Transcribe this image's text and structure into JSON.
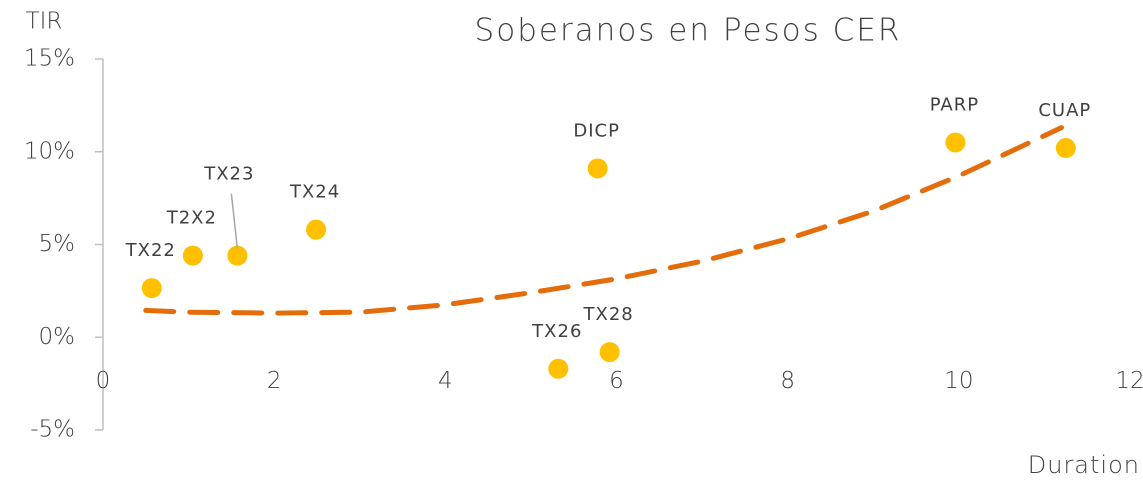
{
  "chart_data": {
    "type": "scatter",
    "title": "Soberanos en Pesos CER",
    "y_label": "TIR",
    "x_label": "Duration",
    "labels": [
      "TX22",
      "T2X2",
      "TX23",
      "TX24",
      "DICP",
      "TX26",
      "TX28",
      "PARP",
      "CUAP"
    ],
    "x": [
      0.57,
      1.05,
      1.57,
      2.49,
      5.78,
      5.32,
      5.92,
      9.96,
      11.25
    ],
    "values": [
      2.65,
      4.4,
      4.4,
      5.8,
      9.1,
      -1.7,
      -0.8,
      10.5,
      10.2
    ],
    "color": "#ffc000",
    "trendline": {
      "x": [
        0.5,
        1,
        2,
        3,
        4,
        5,
        6,
        7,
        8,
        9,
        10,
        11.2
      ],
      "values": [
        1.45,
        1.35,
        1.3,
        1.35,
        1.75,
        2.4,
        3.15,
        4.1,
        5.3,
        6.8,
        8.7,
        11.3
      ],
      "color": "#e46c0a"
    },
    "xlim": [
      0,
      12
    ],
    "xticks": [
      0,
      2,
      4,
      6,
      8,
      10,
      12
    ],
    "ylim": [
      -5,
      15
    ],
    "yticks": [
      {
        "value": -5,
        "label": "-5%"
      },
      {
        "value": 0,
        "label": "0%"
      },
      {
        "value": 5,
        "label": "5%"
      },
      {
        "value": 10,
        "label": "10%"
      },
      {
        "value": 15,
        "label": "15%"
      }
    ],
    "grid": false
  }
}
